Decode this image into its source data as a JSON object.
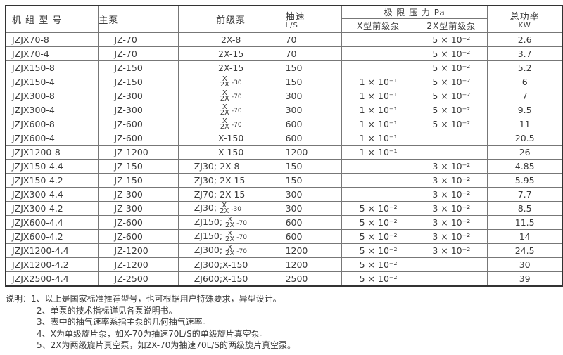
{
  "headers": {
    "model": "机 组 型 号",
    "main_pump": "主泵",
    "fore_pump": "前级泵",
    "speed": "抽速",
    "speed_unit": "L/S",
    "ultimate_pressure": "极 限 压 力 Pa",
    "x_type": "X型前级泵",
    "x2_type": "2X型前级泵",
    "power": "总功率",
    "power_unit": "KW"
  },
  "rows": [
    {
      "model": "JZJX70-8",
      "main": "JZ-70",
      "fore": {
        "text": "2X-8"
      },
      "speed": "70",
      "px": "",
      "p2x": "5 × 10⁻²",
      "power": "2.6"
    },
    {
      "model": "JZJX70-4",
      "main": "JZ-70",
      "fore": {
        "text": "2X-15"
      },
      "speed": "70",
      "px": "",
      "p2x": "5 × 10⁻²",
      "power": "3.7"
    },
    {
      "model": "JZJX150-8",
      "main": "JZ-150",
      "fore": {
        "text": "2X-15"
      },
      "speed": "150",
      "px": "",
      "p2x": "5 × 10⁻²",
      "power": "5.2"
    },
    {
      "model": "JZJX150-4",
      "main": "JZ-150",
      "fore": {
        "prefix": "",
        "top": "X",
        "bottom": "2X",
        "suffix": "-30"
      },
      "speed": "150",
      "px": "1 × 10⁻¹",
      "p2x": "5 × 10⁻²",
      "power": "6"
    },
    {
      "model": "JZJX300-8",
      "main": "JZ-300",
      "fore": {
        "prefix": "",
        "top": "X",
        "bottom": "2X",
        "suffix": "-70"
      },
      "speed": "300",
      "px": "1 × 10⁻¹",
      "p2x": "5 × 10⁻²",
      "power": "7"
    },
    {
      "model": "JZJX300-4",
      "main": "JZ-300",
      "fore": {
        "prefix": "",
        "top": "X",
        "bottom": "2X",
        "suffix": "-70"
      },
      "speed": "300",
      "px": "1 × 10⁻¹",
      "p2x": "5 × 10⁻²",
      "power": "9.5"
    },
    {
      "model": "JZJX600-8",
      "main": "JZ-600",
      "fore": {
        "prefix": "",
        "top": "X",
        "bottom": "2X",
        "suffix": "-70"
      },
      "speed": "600",
      "px": "1 × 10⁻¹",
      "p2x": "5 × 10⁻²",
      "power": "11"
    },
    {
      "model": "JZJX600-4",
      "main": "JZ-600",
      "fore": {
        "text": "X-150"
      },
      "speed": "600",
      "px": "1 × 10⁻¹",
      "p2x": "",
      "power": "20.5"
    },
    {
      "model": "JZJX1200-8",
      "main": "JZ-1200",
      "fore": {
        "text": "X-150"
      },
      "speed": "1200",
      "px": "1 × 10⁻¹",
      "p2x": "",
      "power": "26"
    },
    {
      "model": "JZJX150-4.4",
      "main": "JZ-150",
      "fore": {
        "text": "ZJ30; 2X-8",
        "zj": true
      },
      "speed": "150",
      "px": "",
      "p2x": "3 × 10⁻²",
      "power": "4.85"
    },
    {
      "model": "JZJX150-4.2",
      "main": "JZ-150",
      "fore": {
        "text": "ZJ30; 2X-15",
        "zj": true
      },
      "speed": "150",
      "px": "",
      "p2x": "3 × 10⁻²",
      "power": "5.95"
    },
    {
      "model": "JZJX300-4.4",
      "main": "JZ-300",
      "fore": {
        "text": "ZJ70; 2X-15",
        "zj": true
      },
      "speed": "300",
      "px": "",
      "p2x": "3 × 10⁻²",
      "power": "7.7"
    },
    {
      "model": "JZJX300-4.2",
      "main": "JZ-300",
      "fore": {
        "prefix": "ZJ30;",
        "top": "X",
        "bottom": "2X",
        "suffix": "-30",
        "zj": true
      },
      "speed": "300",
      "px": "5 × 10⁻²",
      "p2x": "3 × 10⁻²",
      "power": "8.5"
    },
    {
      "model": "JZJX600-4.4",
      "main": "JZ-600",
      "fore": {
        "prefix": "ZJ150;",
        "top": "X",
        "bottom": "2X",
        "suffix": "-70",
        "zj": true
      },
      "speed": "600",
      "px": "5 × 10⁻²",
      "p2x": "3 × 10⁻²",
      "power": "11.5"
    },
    {
      "model": "JZJX600-4.2",
      "main": "JZ-600",
      "fore": {
        "prefix": "ZJ150;",
        "top": "X",
        "bottom": "2X",
        "suffix": "-70",
        "zj": true
      },
      "speed": "600",
      "px": "5 × 10⁻²",
      "p2x": "3 × 10⁻²",
      "power": "14"
    },
    {
      "model": "JZJX1200-4.4",
      "main": "JZ-1200",
      "fore": {
        "prefix": "ZJ300;",
        "top": "X",
        "bottom": "2X",
        "suffix": "-70",
        "zj": true
      },
      "speed": "1200",
      "px": "5 × 10⁻²",
      "p2x": "3 × 10⁻²",
      "power": "24.5"
    },
    {
      "model": "JZJX1200-4.2",
      "main": "JZ-1200",
      "fore": {
        "text": "ZJ300;X-150",
        "zj": true
      },
      "speed": "1200",
      "px": "5 × 10⁻²",
      "p2x": "",
      "power": "30"
    },
    {
      "model": "JZJX2500-4.4",
      "main": "JZ-2500",
      "fore": {
        "text": "ZJ600;X-150",
        "zj": true
      },
      "speed": "2500",
      "px": "5 × 10⁻²",
      "p2x": "",
      "power": "39"
    }
  ],
  "notes": [
    "说明：1、以上是国家标准推荐型号，也可根据用户特殊要求，异型设计。",
    "2、单泵的技术指标详见各泵说明书。",
    "3、表中的抽气速率系指主泵的几何抽气速率。",
    "4、X为单级旋片泵，如X-70为抽速70L/S的单级旋片真空泵。",
    "5、2X为两级旋片真空泵，如2X-70为抽速70L/S的两级旋片真空泵。"
  ]
}
